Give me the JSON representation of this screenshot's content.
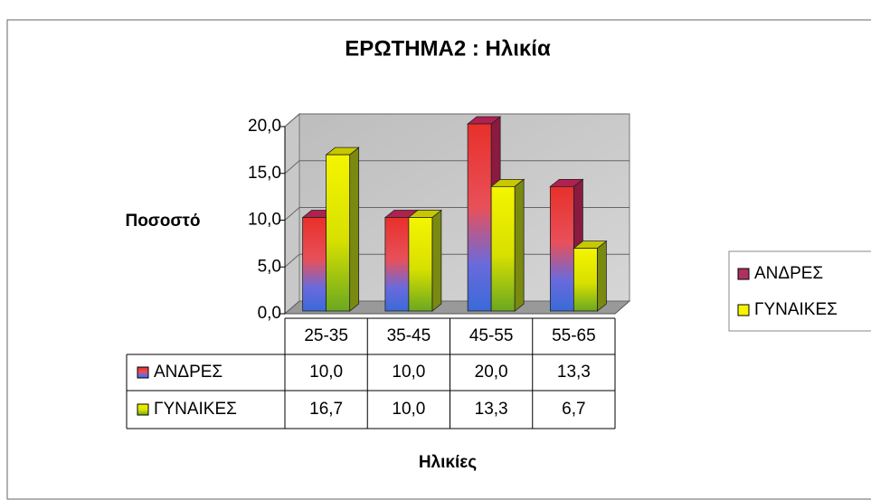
{
  "chart_data": {
    "type": "bar3d",
    "title": "ΕΡΩΤΗΜΑ2 : Ηλικία",
    "y_label": "Ποσοστό",
    "x_label": "Ηλικίες",
    "categories": [
      "25-35",
      "35-45",
      "45-55",
      "55-65"
    ],
    "series": [
      {
        "name": "ΑΝΔΡΕΣ",
        "color": "#e8302a",
        "values": [
          10,
          10,
          20,
          13.3
        ],
        "value_labels": [
          "10,0",
          "10,0",
          "20,0",
          "13,3"
        ]
      },
      {
        "name": "ΓΥΝΑΙΚΕΣ",
        "color": "#f5f500",
        "values": [
          16.7,
          10,
          13.3,
          6.7
        ],
        "value_labels": [
          "16,7",
          "10,0",
          "13,3",
          "6,7"
        ]
      }
    ],
    "ylim": [
      0,
      20
    ],
    "yticks": [
      {
        "value": 0,
        "label": "0,0"
      },
      {
        "value": 5,
        "label": "5,0"
      },
      {
        "value": 10,
        "label": "10,0"
      },
      {
        "value": 15,
        "label": "15,0"
      },
      {
        "value": 20,
        "label": "20,0"
      }
    ],
    "grid": true,
    "legend": "right",
    "data_table": true
  }
}
